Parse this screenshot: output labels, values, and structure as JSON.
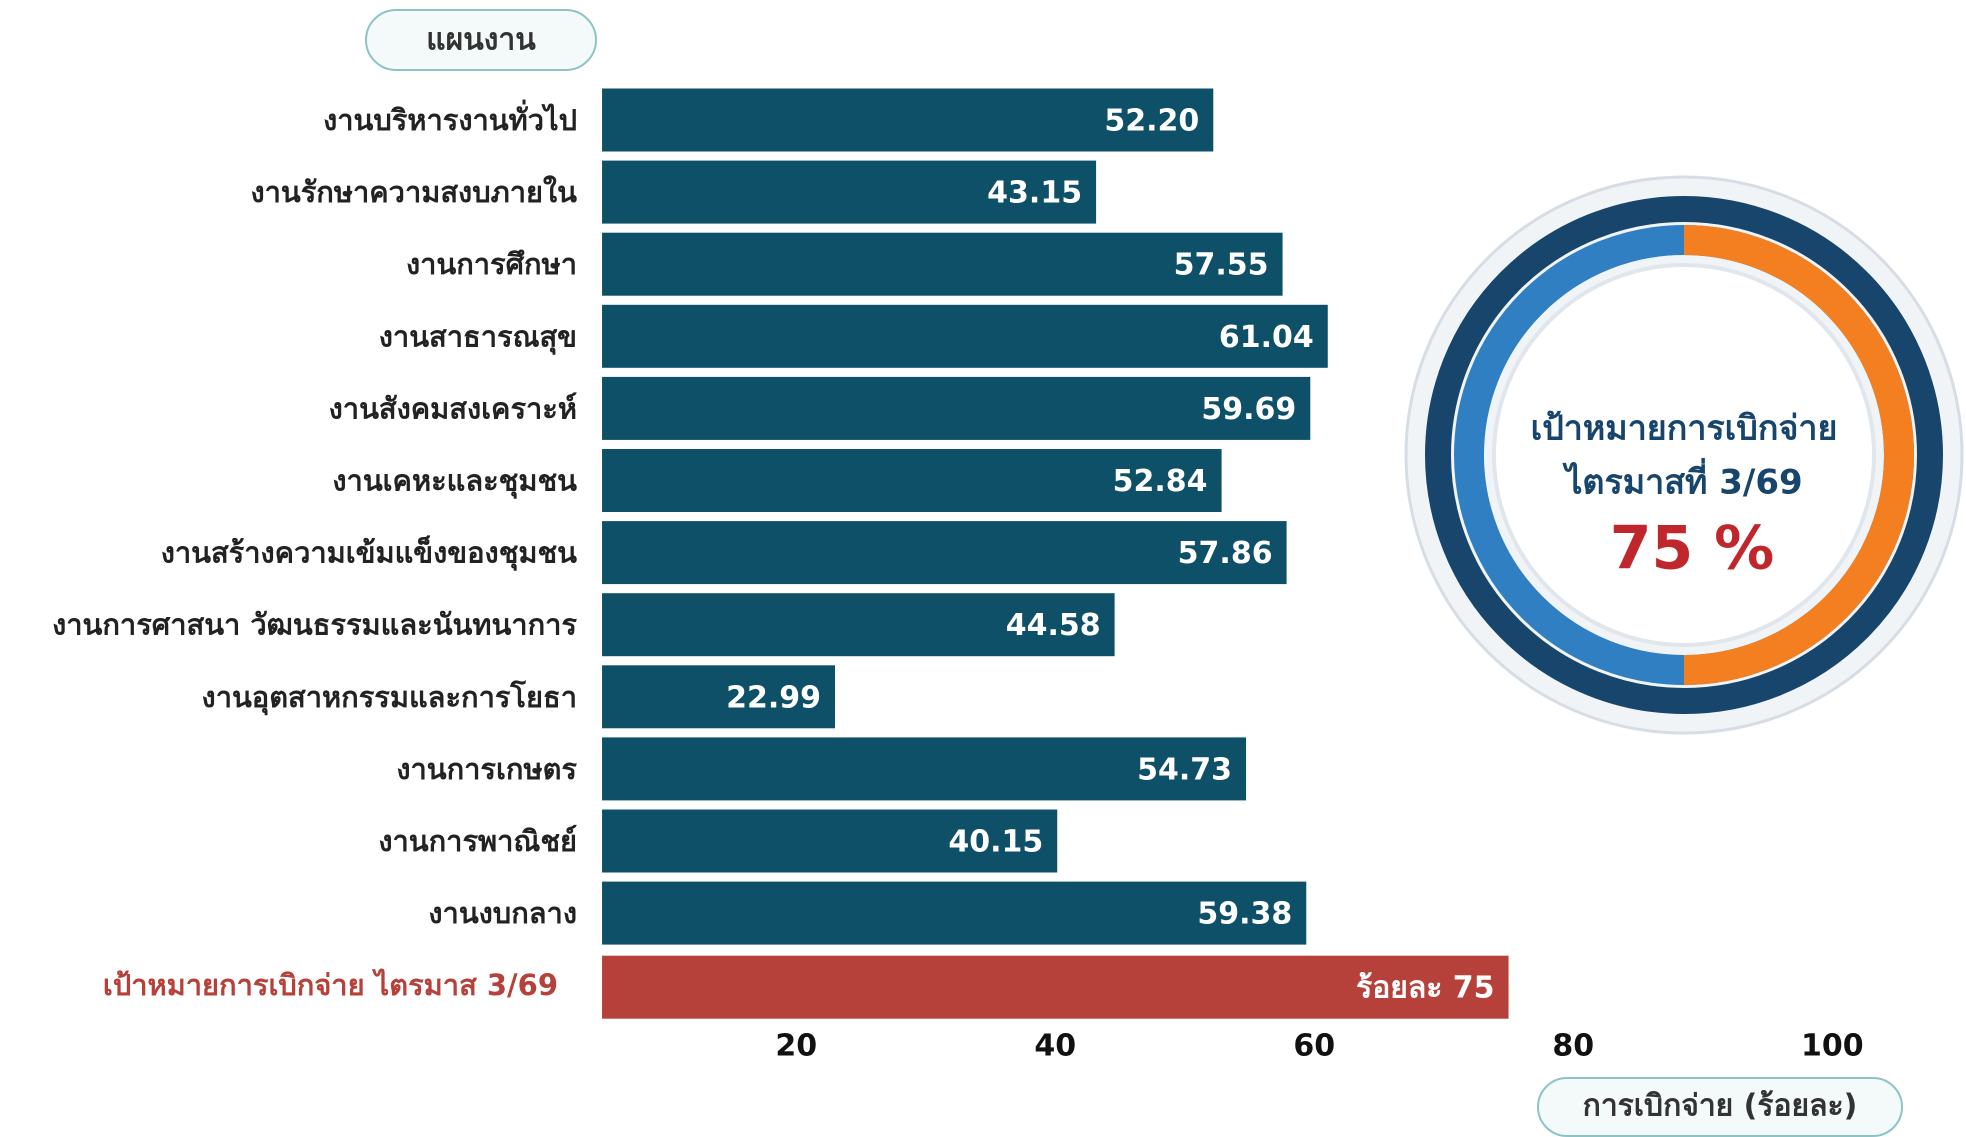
{
  "chart_data": {
    "type": "bar",
    "orientation": "horizontal",
    "y_header": "แผนงาน",
    "xlabel": "การเบิกจ่าย (ร้อยละ)",
    "categories": [
      "งานบริหารงานทั่วไป",
      "งานรักษาความสงบภายใน",
      "งานการศึกษา",
      "งานสาธารณสุข",
      "งานสังคมสงเคราะห์",
      "งานเคหะและชุมชน",
      "งานสร้างความเข้มแข็งของชุมชน",
      "งานการศาสนา วัฒนธรรมและนันทนาการ",
      "งานอุตสาหกรรมและการโยธา",
      "งานการเกษตร",
      "งานการพาณิชย์",
      "งานงบกลาง"
    ],
    "values": [
      52.2,
      43.15,
      57.55,
      61.04,
      59.69,
      52.84,
      57.86,
      44.58,
      22.99,
      54.73,
      40.15,
      59.38
    ],
    "value_labels": [
      "52.20",
      "43.15",
      "57.55",
      "61.04",
      "59.69",
      "52.84",
      "57.86",
      "44.58",
      "22.99",
      "54.73",
      "40.15",
      "59.38"
    ],
    "color": "#0d5068",
    "target": {
      "label": "เป้าหมายการเบิกจ่าย ไตรมาส 3/69",
      "value": 75,
      "value_label": "ร้อยละ 75",
      "color": "#b5413a"
    },
    "xlim": [
      5,
      102
    ],
    "xticks": [
      20,
      40,
      60,
      80,
      100
    ],
    "gauge": {
      "line1": "เป้าหมายการเบิกจ่าย",
      "line2": "ไตรมาสที่ 3/69",
      "value_label": "75 %"
    }
  }
}
